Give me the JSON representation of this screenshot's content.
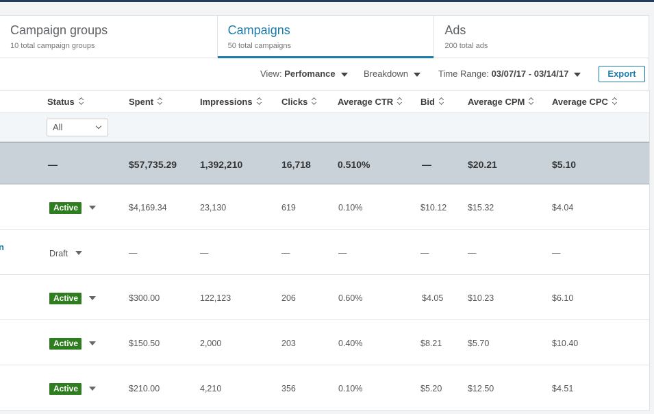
{
  "tabs": [
    {
      "title": "Campaign groups",
      "subtitle": "10 total campaign groups"
    },
    {
      "title": "Campaigns",
      "subtitle": "50 total campaigns"
    },
    {
      "title": "Ads",
      "subtitle": "200 total ads"
    }
  ],
  "active_tab": "Campaigns",
  "toolbar": {
    "view_label": "View:",
    "view_value": "Perfomance",
    "breakdown_label": "Breakdown",
    "time_range_label": "Time Range:",
    "time_range_value": "03/07/17 - 03/14/17",
    "export_label": "Export"
  },
  "table": {
    "columns": [
      "Status",
      "Spent",
      "Impressions",
      "Clicks",
      "Average CTR",
      "Bid",
      "Average CPM",
      "Average CPC"
    ],
    "status_filter": "All",
    "totals": {
      "status": "—",
      "spent": "$57,735.29",
      "impressions": "1,392,210",
      "clicks": "16,718",
      "ctr": "0.510%",
      "bid": "—",
      "cpm": "$20.21",
      "cpc": "$5.10"
    },
    "rows": [
      {
        "edge": "",
        "status": "Active",
        "spent": "$4,169.34",
        "impressions": "23,130",
        "clicks": "619",
        "ctr": "0.10%",
        "bid": "$10.12",
        "cpm": "$15.32",
        "cpc": "$4.04"
      },
      {
        "edge": "n",
        "status": "Draft",
        "spent": "—",
        "impressions": "—",
        "clicks": "—",
        "ctr": "—",
        "bid": "—",
        "cpm": "—",
        "cpc": "—"
      },
      {
        "edge": "",
        "status": "Active",
        "spent": "$300.00",
        "impressions": "122,123",
        "clicks": "206",
        "ctr": "0.60%",
        "bid": "$4.05",
        "cpm": "$10.23",
        "cpc": "$6.10"
      },
      {
        "edge": "",
        "status": "Active",
        "spent": "$150.50",
        "impressions": "2,000",
        "clicks": "203",
        "ctr": "0.40%",
        "bid": "$8.21",
        "cpm": "$5.70",
        "cpc": "$10.40"
      },
      {
        "edge": "",
        "status": "Active",
        "spent": "$210.00",
        "impressions": "4,210",
        "clicks": "356",
        "ctr": "0.10%",
        "bid": "$5.20",
        "cpm": "$12.50",
        "cpc": "$4.51"
      }
    ]
  },
  "colors": {
    "accent": "#1a7ba8",
    "active_badge": "#2e7d1f",
    "totals_row": "#c9d2d8"
  }
}
